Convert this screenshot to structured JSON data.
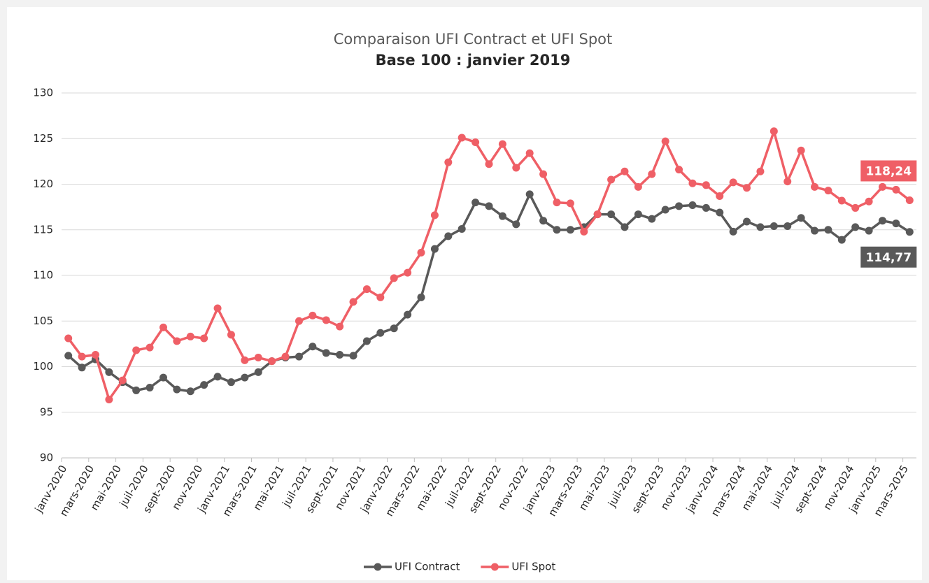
{
  "chart_data": {
    "type": "line",
    "title": "Comparaison UFI Contract et UFI Spot",
    "subtitle": "Base 100 : janvier 2019",
    "categories": [
      "janv-2020",
      null,
      "mars-2020",
      null,
      "mai-2020",
      null,
      "juil-2020",
      null,
      "sept-2020",
      null,
      "nov-2020",
      null,
      "janv-2021",
      null,
      "mars-2021",
      null,
      "mai-2021",
      null,
      "juil-2021",
      null,
      "sept-2021",
      null,
      "nov-2021",
      null,
      "janv-2022",
      null,
      "mars-2022",
      null,
      "mai-2022",
      null,
      "juil-2022",
      null,
      "sept-2022",
      null,
      "nov-2022",
      null,
      "janv-2023",
      null,
      "mars-2023",
      null,
      "mai-2023",
      null,
      "juil-2023",
      null,
      "sept-2023",
      null,
      "nov-2023",
      null,
      "janv-2024",
      null,
      "mars-2024",
      null,
      "mai-2024",
      null,
      "juil-2024",
      null,
      "sept-2024",
      null,
      "nov-2024",
      null,
      "janv-2025",
      null,
      "mars-2025"
    ],
    "series": [
      {
        "name": "UFI Contract",
        "color": "#595959",
        "label_position": "below",
        "values": [
          101.2,
          99.9,
          100.8,
          99.4,
          98.3,
          97.4,
          97.7,
          98.8,
          97.5,
          97.3,
          98.0,
          98.9,
          98.3,
          98.8,
          99.4,
          100.6,
          101.0,
          101.1,
          102.2,
          101.5,
          101.3,
          101.2,
          102.8,
          103.7,
          104.2,
          105.7,
          107.6,
          112.9,
          114.3,
          115.1,
          118.0,
          117.6,
          116.5,
          115.6,
          118.9,
          116.0,
          115.0,
          115.0,
          115.3,
          116.7,
          116.7,
          115.3,
          116.7,
          116.2,
          117.2,
          117.6,
          117.7,
          117.4,
          116.9,
          114.8,
          115.9,
          115.3,
          115.4,
          115.4,
          116.3,
          114.9,
          115.0,
          113.9,
          115.3,
          114.9,
          116.0,
          115.7,
          114.77
        ],
        "value_labels": [
          null,
          null,
          null,
          null,
          null,
          null,
          null,
          null,
          null,
          null,
          null,
          null,
          null,
          null,
          null,
          null,
          null,
          null,
          null,
          null,
          null,
          null,
          null,
          null,
          null,
          null,
          null,
          null,
          null,
          null,
          null,
          null,
          null,
          null,
          null,
          null,
          null,
          null,
          null,
          null,
          null,
          null,
          null,
          null,
          null,
          null,
          null,
          null,
          null,
          null,
          null,
          null,
          null,
          null,
          null,
          null,
          null,
          null,
          null,
          null,
          null,
          null,
          "114,77"
        ]
      },
      {
        "name": "UFI Spot",
        "color": "#ef5f66",
        "label_position": "above",
        "values": [
          103.1,
          101.1,
          101.3,
          96.4,
          98.5,
          101.8,
          102.1,
          104.3,
          102.8,
          103.3,
          103.1,
          106.4,
          103.5,
          100.7,
          101.0,
          100.6,
          101.1,
          105.0,
          105.6,
          105.1,
          104.4,
          107.1,
          108.5,
          107.6,
          109.7,
          110.3,
          112.5,
          116.6,
          122.4,
          125.1,
          124.6,
          122.2,
          124.4,
          121.8,
          123.4,
          121.1,
          118.0,
          117.9,
          114.8,
          116.7,
          120.5,
          121.4,
          119.7,
          121.1,
          124.7,
          121.6,
          120.1,
          119.9,
          118.7,
          120.2,
          119.6,
          121.4,
          125.8,
          120.3,
          123.7,
          119.7,
          119.3,
          118.2,
          117.4,
          118.1,
          119.7,
          119.4,
          118.24
        ],
        "value_labels": [
          null,
          null,
          null,
          null,
          null,
          null,
          null,
          null,
          null,
          null,
          null,
          null,
          null,
          null,
          null,
          null,
          null,
          null,
          null,
          null,
          null,
          null,
          null,
          null,
          null,
          null,
          null,
          null,
          null,
          null,
          null,
          null,
          null,
          null,
          null,
          null,
          null,
          null,
          null,
          null,
          null,
          null,
          null,
          null,
          null,
          null,
          null,
          null,
          null,
          null,
          null,
          null,
          null,
          null,
          null,
          null,
          null,
          null,
          null,
          null,
          null,
          null,
          "118,24"
        ]
      }
    ],
    "ylim": [
      90,
      130
    ],
    "yticks": [
      90,
      95,
      100,
      105,
      110,
      115,
      120,
      125,
      130
    ],
    "grid": true,
    "legend": "bottom"
  }
}
